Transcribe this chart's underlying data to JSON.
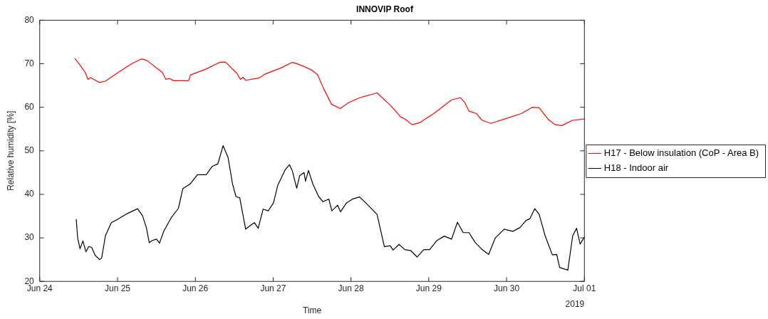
{
  "chart_data": {
    "type": "line",
    "title": "INNOVIP Roof",
    "xlabel": "Time",
    "ylabel": "Relative humidity [%]",
    "annotations": [
      "2019"
    ],
    "xlim": [
      "2019-06-24",
      "2019-07-01"
    ],
    "xticks": [
      {
        "value": "2019-06-24",
        "label": "Jun 24"
      },
      {
        "value": "2019-06-25",
        "label": "Jun 25"
      },
      {
        "value": "2019-06-26",
        "label": "Jun 26"
      },
      {
        "value": "2019-06-27",
        "label": "Jun 27"
      },
      {
        "value": "2019-06-28",
        "label": "Jun 28"
      },
      {
        "value": "2019-06-29",
        "label": "Jun 29"
      },
      {
        "value": "2019-06-30",
        "label": "Jun 30"
      },
      {
        "value": "2019-07-01",
        "label": "Jul 01"
      }
    ],
    "ylim": [
      20,
      80
    ],
    "yticks": [
      20,
      30,
      40,
      50,
      60,
      70,
      80
    ],
    "grid": false,
    "legend": "right",
    "marker": "none",
    "line_style": "solid",
    "series": [
      {
        "name": "H17 - Below insulation (CoP - Area B)",
        "color": "#ff0000",
        "x": [
          "2019-06-24T10:49",
          "2019-06-24T12:10",
          "2019-06-24T14:03",
          "2019-06-24T14:52",
          "2019-06-24T15:41",
          "2019-06-24T18:23",
          "2019-06-24T20:16",
          "2019-06-24T23:47",
          "2019-06-25T04:23",
          "2019-06-25T07:21",
          "2019-06-25T08:58",
          "2019-06-25T13:50",
          "2019-06-25T14:55",
          "2019-06-25T16:00",
          "2019-06-25T17:21",
          "2019-06-25T21:57",
          "2019-06-25T22:29",
          "2019-06-26T03:21",
          "2019-06-26T07:24",
          "2019-06-26T09:18",
          "2019-06-26T12:49",
          "2019-06-26T13:53",
          "2019-06-26T14:42",
          "2019-06-26T15:31",
          "2019-06-26T19:34",
          "2019-06-26T21:44",
          "2019-06-27T02:19",
          "2019-06-27T05:50",
          "2019-06-27T06:55",
          "2019-06-27T09:05",
          "2019-06-27T11:47",
          "2019-06-27T13:41",
          "2019-06-27T15:34",
          "2019-06-27T18:00",
          "2019-06-27T20:42",
          "2019-06-27T23:08",
          "2019-06-28T02:39",
          "2019-06-28T08:03",
          "2019-06-28T12:06",
          "2019-06-28T15:21",
          "2019-06-28T16:42",
          "2019-06-28T18:52",
          "2019-06-28T21:18",
          "2019-06-29T01:37",
          "2019-06-29T07:02",
          "2019-06-29T09:44",
          "2019-06-29T11:05",
          "2019-06-29T12:26",
          "2019-06-29T14:35",
          "2019-06-29T16:29",
          "2019-06-29T19:11",
          "2019-06-30T00:35",
          "2019-06-30T04:39",
          "2019-06-30T07:53",
          "2019-06-30T10:03",
          "2019-06-30T12:46",
          "2019-06-30T14:55",
          "2019-06-30T17:05",
          "2019-06-30T20:19",
          "2019-07-01T00:00"
        ],
        "values": [
          71.2,
          70,
          68,
          66.4,
          66.8,
          65.7,
          66,
          67.8,
          70,
          71.1,
          70.8,
          68,
          66.4,
          66.6,
          66.1,
          66.1,
          67.4,
          68.8,
          70.3,
          70.4,
          67.8,
          66.4,
          66.9,
          66.2,
          66.7,
          67.7,
          69,
          70.3,
          70.1,
          69.5,
          68.6,
          67.5,
          64.3,
          60.7,
          59.7,
          61,
          62.2,
          63.3,
          60.5,
          57.8,
          57.3,
          56,
          56.5,
          58.6,
          61.7,
          62.2,
          61.1,
          59.1,
          58.6,
          57,
          56.3,
          57.6,
          58.6,
          60,
          59.9,
          57.3,
          56,
          55.8,
          57,
          57.3
        ]
      },
      {
        "name": "H18 - Indoor air",
        "color": "#000000",
        "x": [
          "2019-06-24T11:16",
          "2019-06-24T11:42",
          "2019-06-24T12:26",
          "2019-06-24T13:19",
          "2019-06-24T14:15",
          "2019-06-24T15:08",
          "2019-06-24T16:02",
          "2019-06-24T17:06",
          "2019-06-24T18:28",
          "2019-06-24T19:07",
          "2019-06-24T20:16",
          "2019-06-24T22:05",
          "2019-06-25T00:19",
          "2019-06-25T03:02",
          "2019-06-25T06:11",
          "2019-06-25T07:42",
          "2019-06-25T08:53",
          "2019-06-25T09:47",
          "2019-06-25T10:41",
          "2019-06-25T12:02",
          "2019-06-25T12:57",
          "2019-06-25T14:18",
          "2019-06-25T16:32",
          "2019-06-25T18:47",
          "2019-06-25T20:08",
          "2019-06-25T22:25",
          "2019-06-26T00:39",
          "2019-06-26T03:21",
          "2019-06-26T05:10",
          "2019-06-26T06:57",
          "2019-06-26T08:34",
          "2019-06-26T10:07",
          "2019-06-26T11:28",
          "2019-06-26T12:32",
          "2019-06-26T13:42",
          "2019-06-26T15:31",
          "2019-06-26T16:52",
          "2019-06-26T18:13",
          "2019-06-26T19:23",
          "2019-06-26T20:55",
          "2019-06-26T22:28",
          "2019-06-27T00:05",
          "2019-06-27T01:26",
          "2019-06-27T03:41",
          "2019-06-27T05:02",
          "2019-06-27T05:55",
          "2019-06-27T07:16",
          "2019-06-27T08:11",
          "2019-06-27T09:32",
          "2019-06-27T09:58",
          "2019-06-27T10:53",
          "2019-06-27T12:14",
          "2019-06-27T14:02",
          "2019-06-27T15:23",
          "2019-06-27T17:11",
          "2019-06-27T18:05",
          "2019-06-27T19:53",
          "2019-06-27T20:47",
          "2019-06-27T22:35",
          "2019-06-28T00:25",
          "2019-06-28T02:39",
          "2019-06-28T04:53",
          "2019-06-28T08:03",
          "2019-06-28T10:18",
          "2019-06-28T12:06",
          "2019-06-28T13:00",
          "2019-06-28T14:49",
          "2019-06-28T16:37",
          "2019-06-28T18:24",
          "2019-06-28T20:25",
          "2019-06-28T22:28",
          "2019-06-29T00:16",
          "2019-06-29T02:31",
          "2019-06-29T04:47",
          "2019-06-29T07:02",
          "2019-06-29T08:50",
          "2019-06-29T10:37",
          "2019-06-29T12:26",
          "2019-06-29T14:14",
          "2019-06-29T16:29",
          "2019-06-29T18:28",
          "2019-06-29T20:32",
          "2019-06-29T23:14",
          "2019-06-30T01:57",
          "2019-06-30T04:11",
          "2019-06-30T06:00",
          "2019-06-30T07:10",
          "2019-06-30T08:42",
          "2019-06-30T10:03",
          "2019-06-30T11:52",
          "2019-06-30T14:07",
          "2019-06-30T15:28",
          "2019-06-30T16:21",
          "2019-06-30T18:53",
          "2019-06-30T20:24",
          "2019-06-30T21:35",
          "2019-06-30T22:41",
          "2019-07-01T00:00"
        ],
        "values": [
          34.3,
          30,
          27.5,
          29.3,
          26.8,
          28,
          27.8,
          26,
          25,
          25.4,
          30.5,
          33.5,
          34.4,
          35.6,
          36.7,
          35.1,
          32.4,
          28.9,
          29.4,
          29.7,
          28.8,
          31.6,
          34.6,
          36.8,
          41.3,
          42.4,
          44.5,
          44.5,
          46.4,
          47,
          51.2,
          48.4,
          42.4,
          39.5,
          39.2,
          32,
          32.8,
          33.5,
          32.2,
          36.6,
          36.2,
          38,
          42.1,
          45.6,
          46.8,
          45.4,
          41.4,
          44.3,
          45,
          43,
          45.5,
          42.4,
          39.5,
          38.3,
          38.9,
          36.2,
          37.5,
          36,
          38,
          38.9,
          39.4,
          37.8,
          35.4,
          28,
          28.2,
          27.2,
          28.5,
          27.3,
          27.1,
          25.6,
          27.3,
          27.3,
          29.4,
          30.4,
          29.7,
          33.6,
          31.2,
          31.2,
          29,
          27.3,
          26.2,
          30,
          32,
          31.5,
          32.4,
          34,
          34.4,
          36.7,
          35.4,
          30.5,
          26.1,
          26.2,
          23.2,
          22.6,
          30.5,
          32.2,
          28.6,
          30.2
        ]
      }
    ]
  }
}
